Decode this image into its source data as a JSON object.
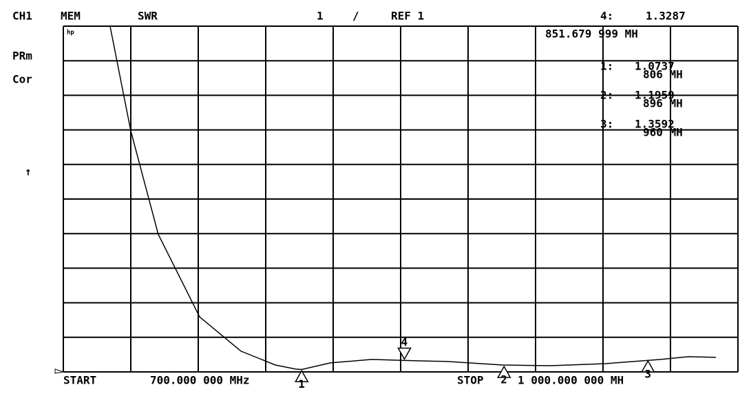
{
  "header": {
    "channel": "CH1",
    "mode": "MEM",
    "format": "SWR",
    "scale": "1",
    "slash": "/",
    "ref": "REF 1"
  },
  "side_labels": [
    "PRm",
    "Cor"
  ],
  "arrow": "↑",
  "logo": "hp",
  "active_marker": {
    "label": "4:",
    "value": "1.3287",
    "freq": "851.679 999 MH"
  },
  "markers": [
    {
      "id": "1",
      "label": "1:",
      "value": "1.0737",
      "freq": "806 MH",
      "x": 806,
      "y": 1.0737
    },
    {
      "id": "2",
      "label": "2:",
      "value": "1.1959",
      "freq": "896 MH",
      "x": 896,
      "y": 1.1959
    },
    {
      "id": "3",
      "label": "3:",
      "value": "1.3592",
      "freq": "960 MH",
      "x": 960,
      "y": 1.3592
    },
    {
      "id": "4",
      "label": "4:",
      "value": "1.3287",
      "freq": "851.679 999 MH",
      "x": 851.68,
      "y": 1.3287
    }
  ],
  "footer": {
    "start_label": "START",
    "start_value": "700.000 000 MHz",
    "stop_label": "STOP",
    "stop_value": "1 000.000 000 MH"
  },
  "trace": {
    "xlim": [
      700,
      1000
    ],
    "ylim": [
      1,
      11
    ],
    "x": [
      700,
      720.8,
      730,
      742.2,
      760.6,
      779,
      794.3,
      803.5,
      806,
      818.8,
      837.1,
      851.8,
      870.8,
      895.3,
      916.7,
      941.2,
      965.7,
      978,
      990.2
    ],
    "y": [
      11,
      11,
      7.97,
      4.98,
      2.59,
      1.6,
      1.2,
      1.08,
      1.07,
      1.26,
      1.36,
      1.33,
      1.3,
      1.2,
      1.18,
      1.24,
      1.36,
      1.44,
      1.42
    ]
  }
}
